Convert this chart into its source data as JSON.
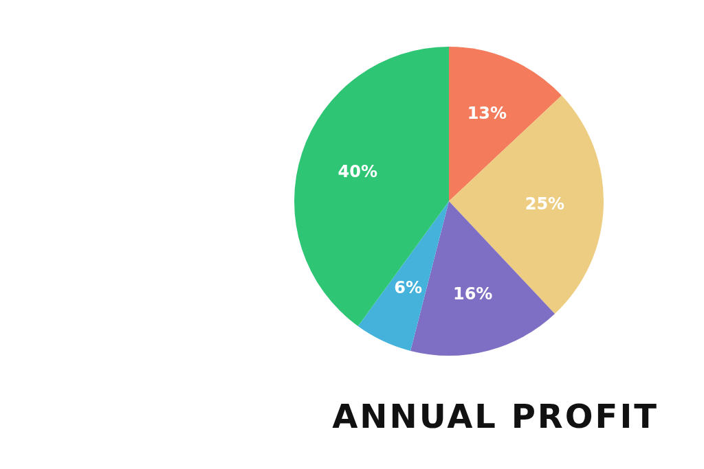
{
  "chart_data": {
    "type": "pie",
    "title": "ANNUAL PROFIT",
    "categories": [
      null,
      null,
      null,
      null,
      null
    ],
    "values": [
      13,
      25,
      16,
      6,
      40
    ],
    "colors": [
      "#f47c5c",
      "#edcd82",
      "#7f6fc4",
      "#45b2dc",
      "#2ec574"
    ],
    "value_labels": [
      "13%",
      "25%",
      "16%",
      "6%",
      "40%"
    ],
    "legend": false
  }
}
